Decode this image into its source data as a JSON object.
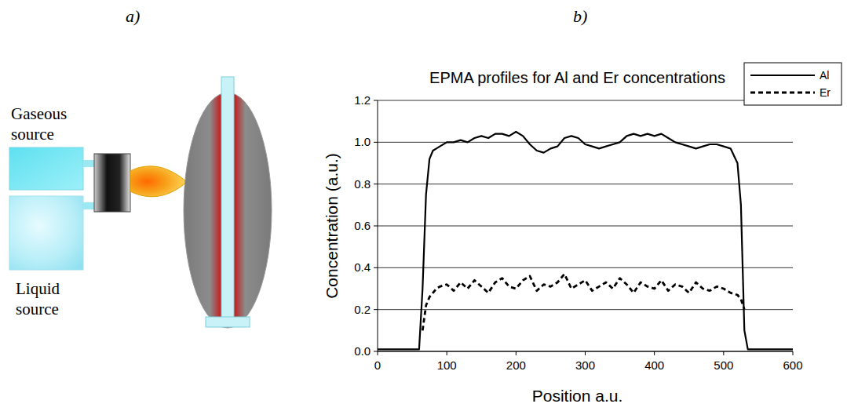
{
  "diagram": {
    "label": "a)",
    "nodes": [
      {
        "label": "Gaseous source"
      },
      {
        "label": "Liquid source"
      }
    ]
  },
  "chart_data": {
    "panel_label": "b)",
    "type": "line",
    "title": "EPMA profiles for Al and Er concentrations",
    "x_label": "Position a.u.",
    "y_label": "Concentration (a.u.)",
    "x": [
      0,
      20,
      40,
      60,
      65,
      70,
      75,
      80,
      85,
      90,
      100,
      110,
      120,
      130,
      140,
      150,
      160,
      170,
      180,
      190,
      200,
      210,
      220,
      230,
      240,
      250,
      260,
      270,
      280,
      290,
      300,
      310,
      320,
      330,
      340,
      350,
      360,
      370,
      380,
      390,
      400,
      410,
      420,
      430,
      440,
      450,
      460,
      470,
      480,
      490,
      500,
      510,
      520,
      525,
      530,
      535,
      540,
      560,
      580,
      600
    ],
    "xlim": [
      0,
      600
    ],
    "xticks": [
      0,
      100,
      200,
      300,
      400,
      500,
      600
    ],
    "ylim": [
      0,
      1.2
    ],
    "yticks": [
      {
        "value": 0,
        "label": "0.0"
      },
      0.2,
      0.4,
      0.6,
      0.8,
      {
        "value": 1,
        "label": "1.0"
      },
      1.2
    ],
    "grid": true,
    "legend": "upper right",
    "series": [
      {
        "name": "Al",
        "color": "#000000",
        "line_style": "solid",
        "values": [
          0.01,
          0.01,
          0.01,
          0.01,
          0.3,
          0.75,
          0.92,
          0.96,
          0.97,
          0.98,
          1.0,
          1.0,
          1.01,
          1.0,
          1.02,
          1.03,
          1.02,
          1.04,
          1.04,
          1.03,
          1.05,
          1.03,
          0.99,
          0.96,
          0.95,
          0.97,
          0.98,
          1.02,
          1.03,
          1.02,
          0.99,
          0.98,
          0.97,
          0.98,
          0.99,
          1.0,
          1.03,
          1.04,
          1.03,
          1.04,
          1.03,
          1.04,
          1.02,
          1.0,
          0.99,
          0.98,
          0.97,
          0.98,
          0.99,
          0.99,
          0.98,
          0.97,
          0.9,
          0.7,
          0.1,
          0.01,
          0.01,
          0.01,
          0.01,
          0.01
        ]
      },
      {
        "name": "Er",
        "color": "#000000",
        "line_style": "dashed",
        "values": [
          null,
          null,
          null,
          null,
          0.1,
          0.22,
          0.26,
          0.28,
          0.3,
          0.31,
          0.32,
          0.29,
          0.33,
          0.3,
          0.34,
          0.31,
          0.28,
          0.33,
          0.35,
          0.31,
          0.3,
          0.34,
          0.36,
          0.29,
          0.32,
          0.31,
          0.33,
          0.37,
          0.3,
          0.32,
          0.34,
          0.29,
          0.31,
          0.33,
          0.3,
          0.35,
          0.32,
          0.28,
          0.33,
          0.31,
          0.3,
          0.34,
          0.29,
          0.32,
          0.31,
          0.28,
          0.33,
          0.3,
          0.29,
          0.31,
          0.3,
          0.28,
          0.27,
          0.25,
          0.2,
          null,
          null,
          null,
          null,
          null
        ]
      }
    ]
  }
}
